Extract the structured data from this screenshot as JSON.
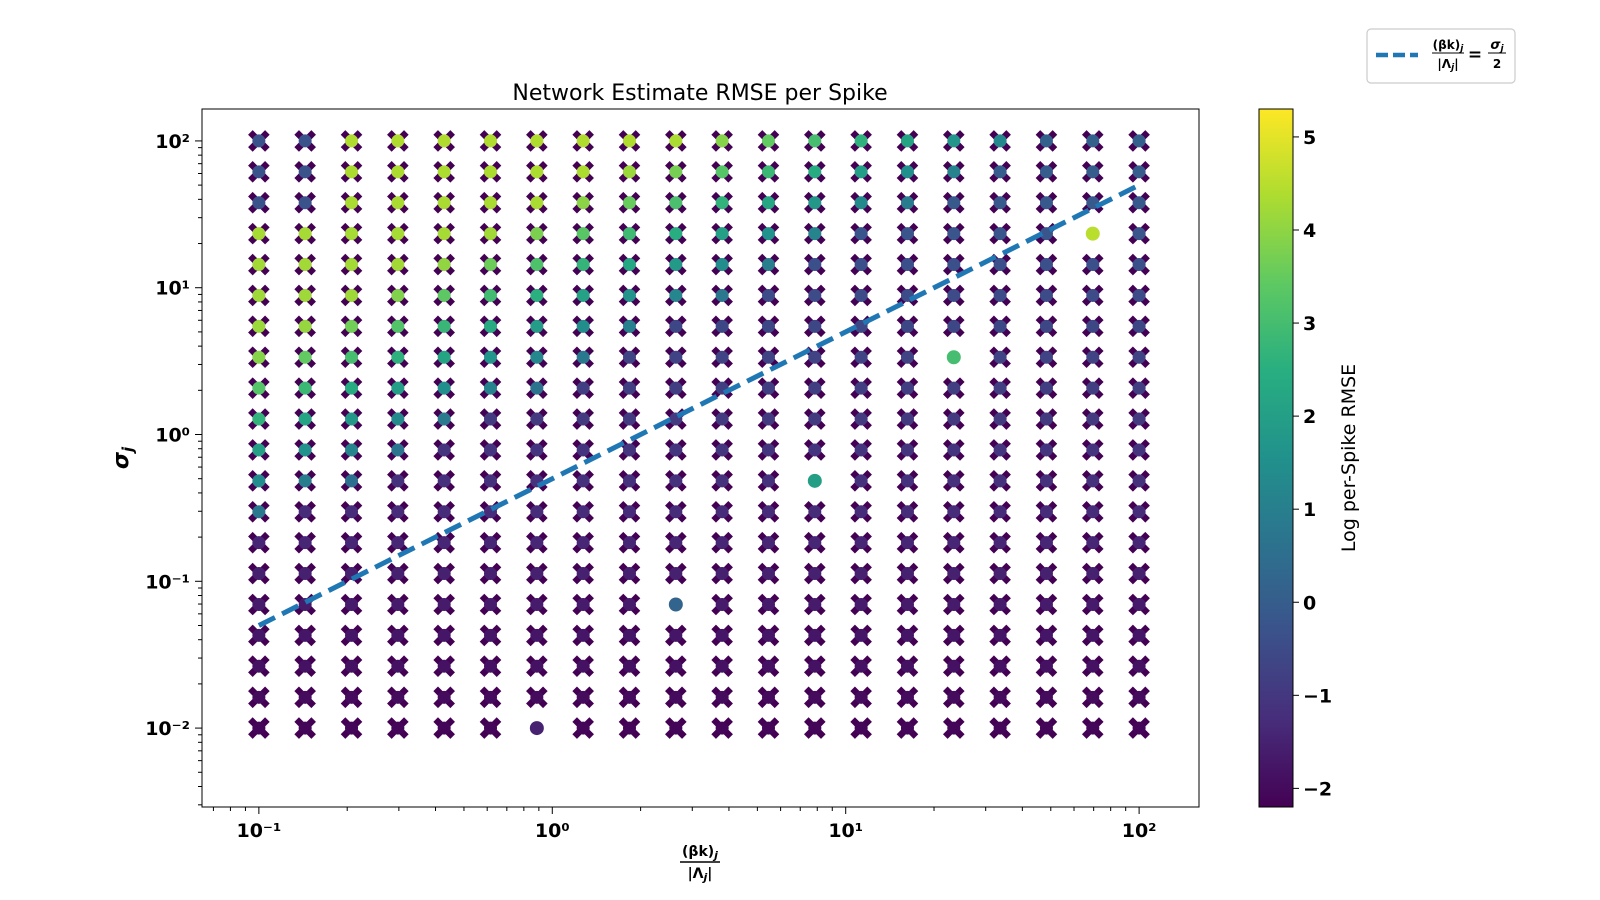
{
  "chart_data": {
    "type": "scatter",
    "title": "Network Estimate RMSE per Spike",
    "xlabel": "(βk)_j / |Λ_j|",
    "ylabel": "σ_j",
    "xscale": "log",
    "yscale": "log",
    "xlim": [
      0.064,
      160
    ],
    "ylim": [
      0.0029,
      165
    ],
    "x_ticks": [
      "10⁻¹",
      "10⁰",
      "10¹",
      "10²"
    ],
    "y_ticks": [
      "10⁻²",
      "10⁻¹",
      "10⁰",
      "10¹",
      "10²"
    ],
    "grid": false,
    "legend": {
      "placement": "outside top-right",
      "entries": [
        {
          "label": "(βk)_j / |Λ_j| = σ_j / 2",
          "style": "dashed line",
          "color": "#1f77b4"
        }
      ]
    },
    "reference_line": {
      "equation": "σ_j = 2·(βk)_j/|Λ_j|",
      "x_range": [
        0.1,
        100
      ],
      "color": "#1f77b4",
      "style": "dashed"
    },
    "colorbar": {
      "label": "Log per-Spike RMSE",
      "range": [
        -2.2,
        5.3
      ],
      "ticks": [
        "−2",
        "−1",
        "0",
        "1",
        "2",
        "3",
        "4",
        "5"
      ],
      "colormap": "viridis"
    },
    "x": [
      0.1,
      0.1438,
      0.2069,
      0.2976,
      0.4281,
      0.6158,
      0.8859,
      1.2743,
      1.833,
      2.6367,
      3.7927,
      5.4556,
      7.8476,
      11.288,
      16.238,
      23.357,
      33.598,
      48.329,
      69.519,
      100.0
    ],
    "y": [
      0.01,
      0.0162,
      0.0264,
      0.0428,
      0.0695,
      0.1129,
      0.1833,
      0.2976,
      0.4833,
      0.7848,
      1.2743,
      2.0691,
      3.3598,
      5.4556,
      8.8587,
      14.384,
      23.357,
      37.927,
      61.585,
      100.0
    ],
    "series": [
      {
        "name": "",
        "marker": "X",
        "description": "failed estimates (x markers, colored by log RMSE)",
        "where": "all grid cells except marked successes"
      },
      {
        "name": "",
        "marker": "o",
        "description": "successful estimates",
        "points": [
          {
            "x": 0.8859,
            "y": 0.01,
            "value": -1.5
          },
          {
            "x": 2.6367,
            "y": 0.0695,
            "value": 0.2
          },
          {
            "x": 7.8476,
            "y": 0.4833,
            "value": 2.0
          },
          {
            "x": 23.357,
            "y": 3.3598,
            "value": 3.0
          },
          {
            "x": 69.519,
            "y": 23.357,
            "value": 4.5
          }
        ]
      }
    ]
  }
}
